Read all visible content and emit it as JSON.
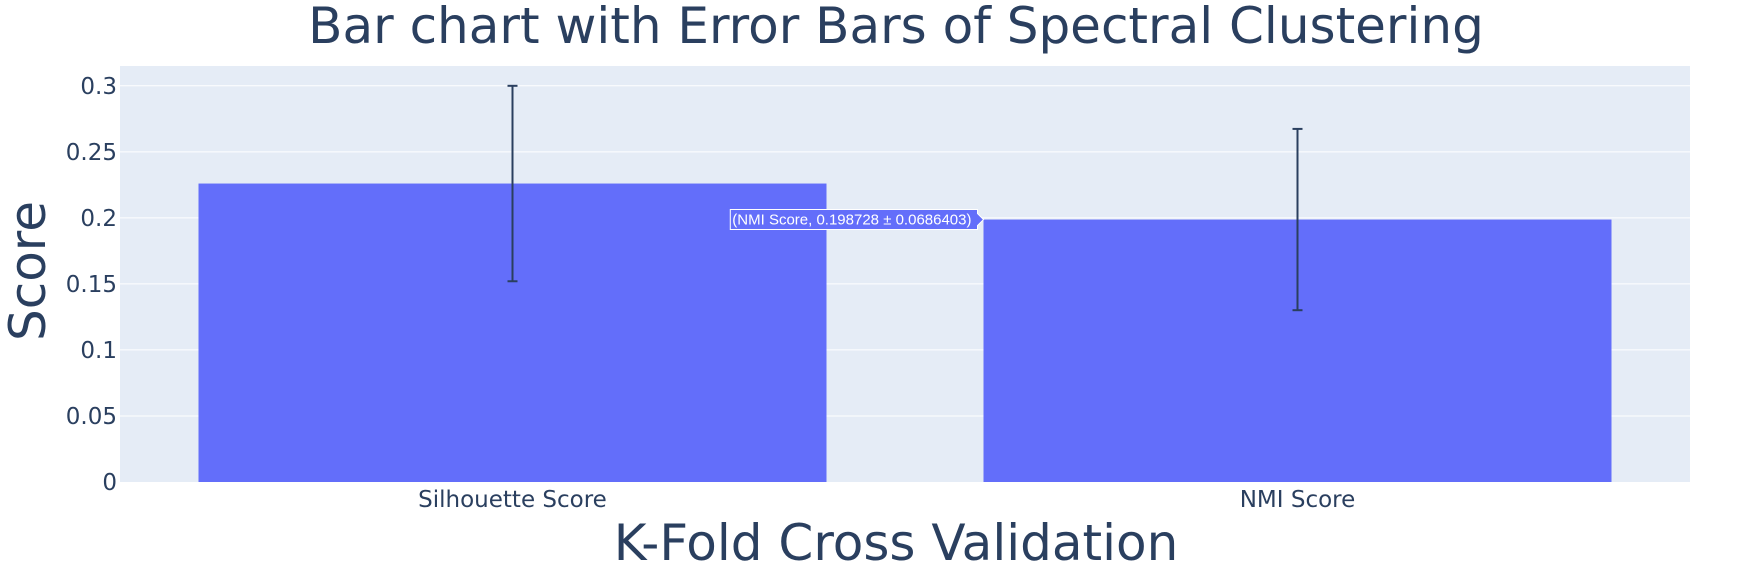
{
  "chart_data": {
    "type": "bar",
    "title": "Bar chart with Error Bars of Spectral Clustering",
    "xlabel": "K-Fold Cross Validation",
    "ylabel": "Score",
    "categories": [
      "Silhouette Score",
      "NMI Score"
    ],
    "values": [
      0.226,
      0.198728
    ],
    "errors": [
      0.074,
      0.0686403
    ],
    "ylim": [
      0,
      0.315
    ],
    "yticks": [
      0,
      0.05,
      0.1,
      0.15,
      0.2,
      0.25,
      0.3
    ],
    "ytick_labels": [
      "0",
      "0.05",
      "0.1",
      "0.15",
      "0.2",
      "0.25",
      "0.3"
    ],
    "grid": true,
    "colors": {
      "bar": "#636efa",
      "plot_bg": "#e5ecf6",
      "grid": "#ffffff",
      "error_bar": "#2a3f5f",
      "text": "#2a3f5f"
    },
    "hover": {
      "category_index": 1,
      "text": "(NMI Score, 0.198728 ± 0.0686403)"
    }
  }
}
